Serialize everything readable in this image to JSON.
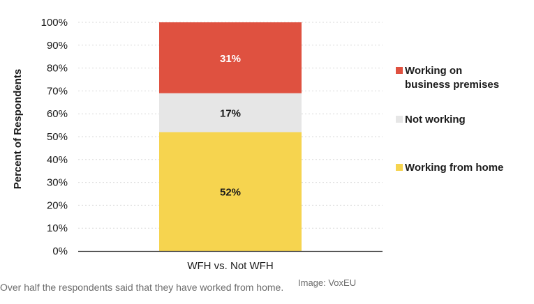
{
  "chart_data": {
    "type": "bar",
    "stacked": true,
    "categories": [
      "WFH vs. Not WFH"
    ],
    "series": [
      {
        "name": "Working from home",
        "values": [
          52
        ],
        "color": "#f6d44f",
        "label": "52%"
      },
      {
        "name": "Not working",
        "values": [
          17
        ],
        "color": "#e6e6e6",
        "label": "17%"
      },
      {
        "name": "Working on business premises",
        "values": [
          31
        ],
        "color": "#df5140",
        "label": "31%"
      }
    ],
    "legend": [
      {
        "lines": [
          "Working on",
          "business premises"
        ],
        "color": "#df5140"
      },
      {
        "lines": [
          "Not working"
        ],
        "color": "#e6e6e6"
      },
      {
        "lines": [
          "Working from home"
        ],
        "color": "#f6d44f"
      }
    ],
    "legend_placement": "right",
    "ylabel": "Percent of Respondents",
    "ylim": [
      0,
      100
    ],
    "yticks": [
      "0%",
      "10%",
      "20%",
      "30%",
      "40%",
      "50%",
      "60%",
      "70%",
      "80%",
      "90%",
      "100%"
    ],
    "grid": true
  },
  "caption": "Over half the respondents said that they have worked from home.",
  "credit": "Image: VoxEU"
}
